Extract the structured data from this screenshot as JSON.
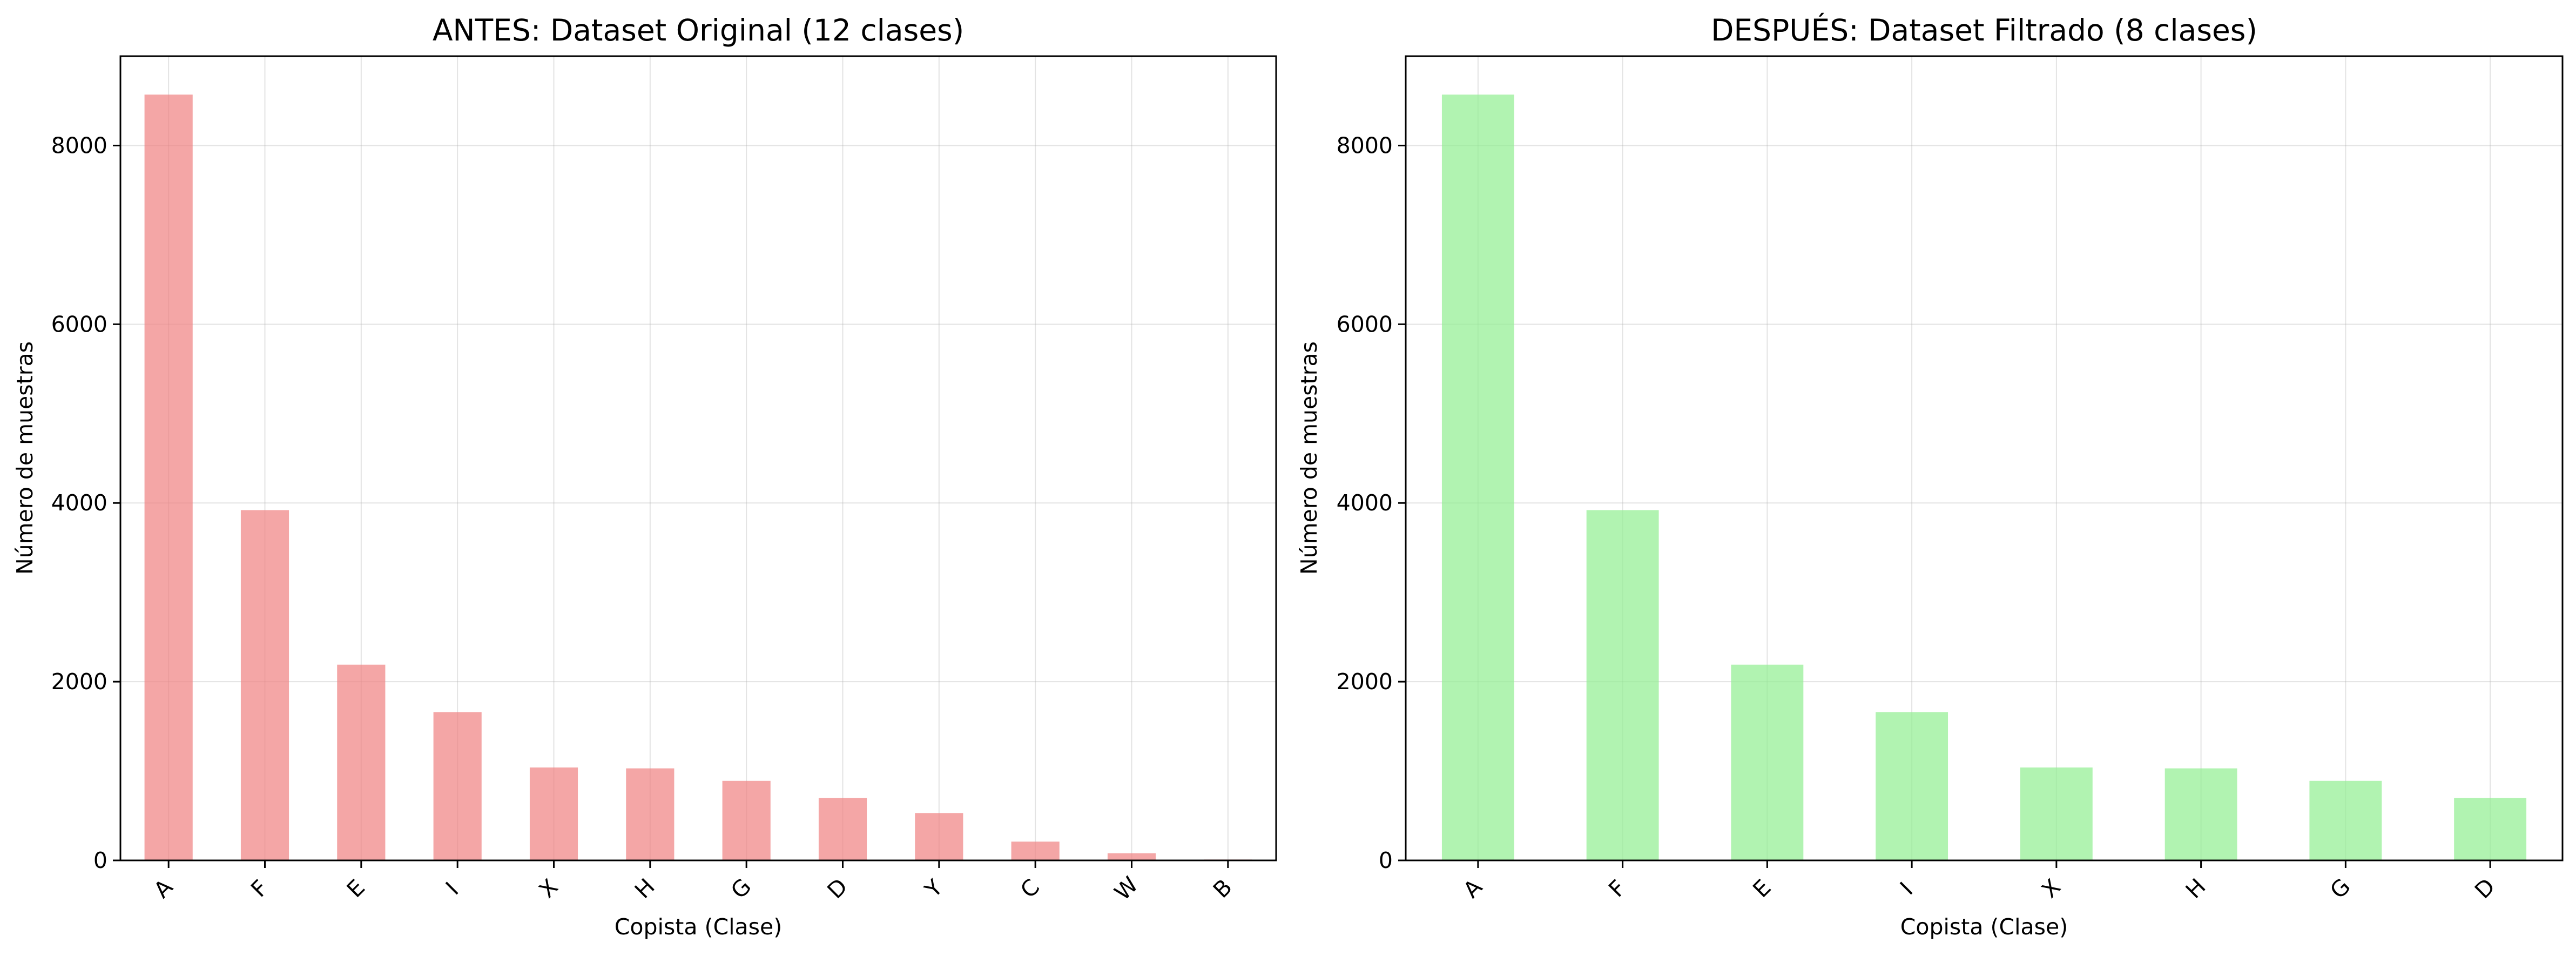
{
  "colors": {
    "left_bars": "#f08080",
    "right_bars": "#90ee90",
    "grid": "#b0b0b0",
    "axes": "#000000"
  },
  "chart_data": [
    {
      "type": "bar",
      "title": "ANTES: Dataset Original (12 clases)",
      "xlabel": "Copista (Clase)",
      "ylabel": "Número de muestras",
      "categories": [
        "A",
        "F",
        "E",
        "I",
        "X",
        "H",
        "G",
        "D",
        "Y",
        "C",
        "W",
        "B"
      ],
      "values": [
        8570,
        3920,
        2190,
        1660,
        1040,
        1030,
        890,
        700,
        530,
        210,
        80,
        10
      ],
      "ylim": [
        0,
        9000
      ],
      "yticks": [
        0,
        2000,
        4000,
        6000,
        8000
      ],
      "grid": true,
      "bar_color": "#f08080",
      "bar_alpha": 0.7
    },
    {
      "type": "bar",
      "title": "DESPUÉS: Dataset Filtrado (8 clases)",
      "xlabel": "Copista (Clase)",
      "ylabel": "Número de muestras",
      "categories": [
        "A",
        "F",
        "E",
        "I",
        "X",
        "H",
        "G",
        "D"
      ],
      "values": [
        8570,
        3920,
        2190,
        1660,
        1040,
        1030,
        890,
        700
      ],
      "ylim": [
        0,
        9000
      ],
      "yticks": [
        0,
        2000,
        4000,
        6000,
        8000
      ],
      "grid": true,
      "bar_color": "#90ee90",
      "bar_alpha": 0.7
    }
  ]
}
